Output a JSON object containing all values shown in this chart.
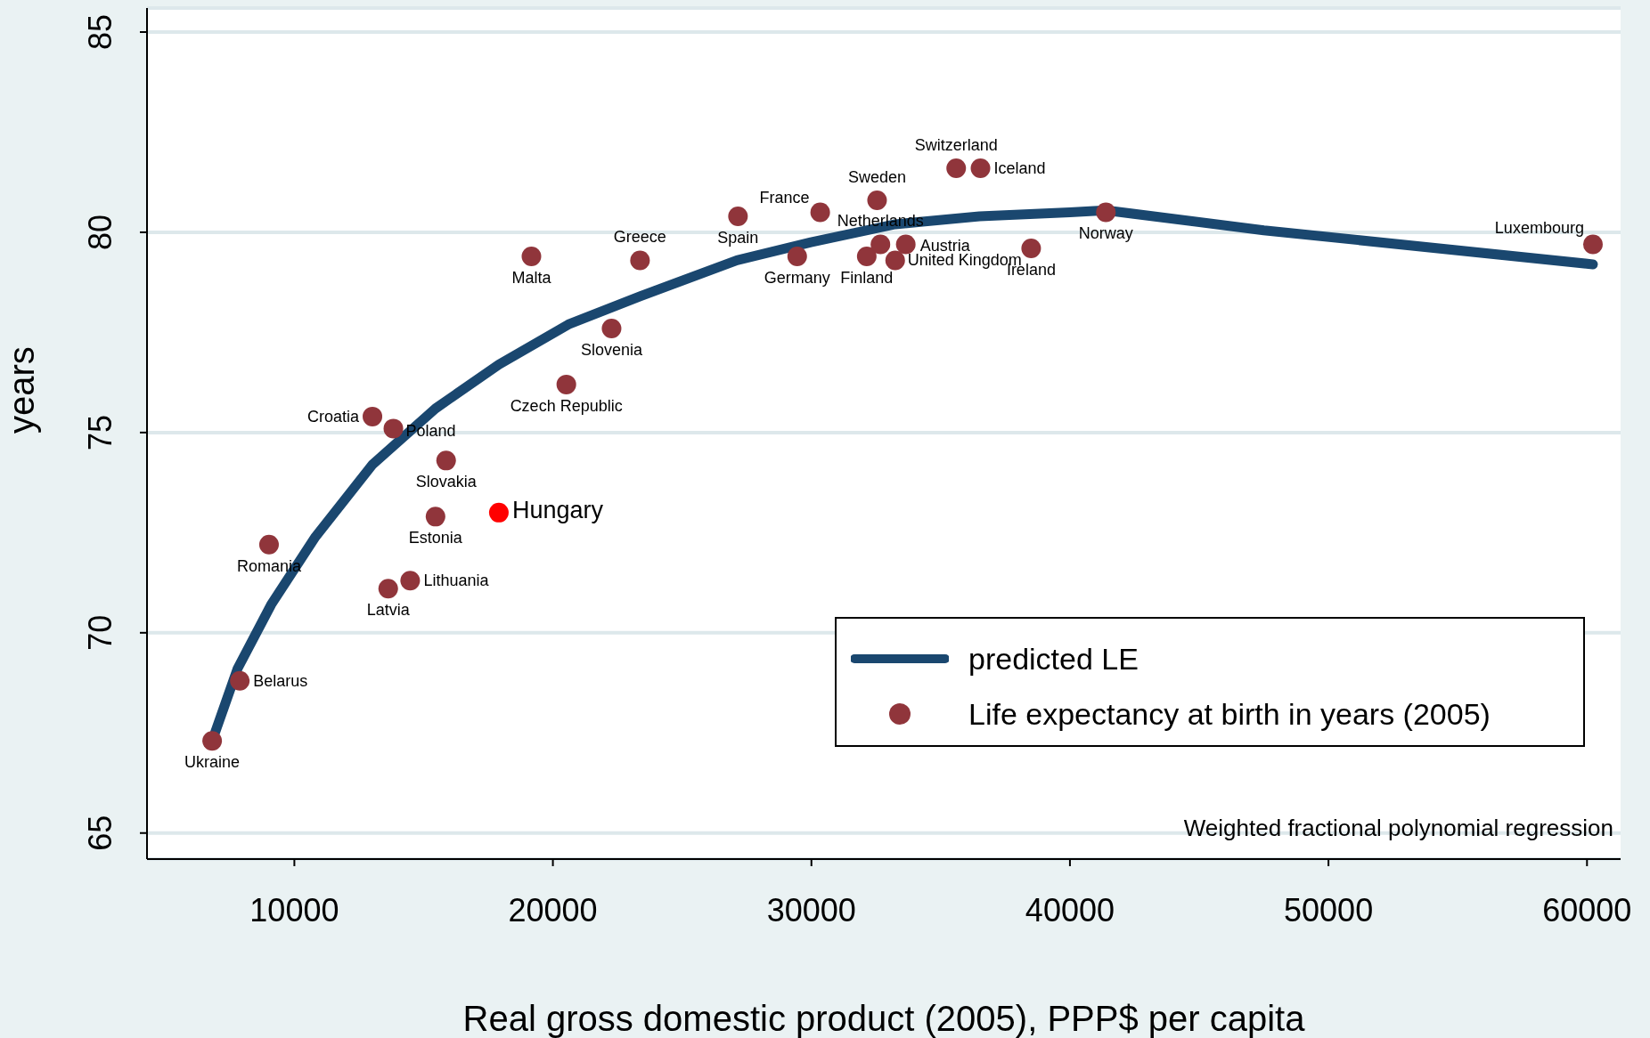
{
  "chart_data": {
    "type": "scatter",
    "xlabel": "Real gross domestic product (2005), PPP$ per capita",
    "ylabel": "years",
    "xlim": [
      4300,
      61300
    ],
    "ylim": [
      64.35,
      85.6
    ],
    "xticks": [
      10000,
      20000,
      30000,
      40000,
      50000,
      60000
    ],
    "yticks": [
      65,
      70,
      75,
      80,
      85
    ],
    "grid": "y",
    "legend": "bottom right",
    "annotations": [
      "Weighted fractional polynomial regression"
    ],
    "series": [
      {
        "type": "line",
        "name": "predicted LE",
        "color": "#1a476f",
        "x": [
          6820,
          7800,
          9100,
          10820,
          13020,
          15460,
          17910,
          20600,
          23370,
          27120,
          29980,
          33240,
          36500,
          40000,
          41390,
          47500,
          60230
        ],
        "values": [
          67.3,
          69.1,
          70.7,
          72.4,
          74.2,
          75.6,
          76.7,
          77.7,
          78.4,
          79.3,
          79.75,
          80.2,
          80.4,
          80.5,
          80.55,
          80.05,
          79.2
        ]
      },
      {
        "name": "Life expectancy at birth in years (2005)",
        "marker": "circle",
        "color": "#90353b",
        "x": [
          6820,
          7890,
          9020,
          13020,
          13830,
          15870,
          15460,
          14480,
          13630,
          19170,
          20520,
          22270,
          23370,
          27160,
          29450,
          30340,
          32540,
          32140,
          32670,
          33240,
          33650,
          35600,
          36540,
          38500,
          41390,
          60230
        ],
        "values": [
          67.3,
          68.8,
          72.2,
          75.4,
          75.1,
          74.3,
          72.9,
          71.3,
          71.1,
          79.4,
          76.2,
          77.6,
          79.3,
          80.4,
          79.4,
          80.5,
          80.8,
          79.4,
          79.7,
          79.3,
          79.7,
          81.6,
          81.6,
          79.6,
          80.5,
          79.7
        ],
        "value_labels": [
          "Ukraine",
          "Belarus",
          "Romania",
          "Croatia",
          "Poland",
          "Slovakia",
          "Estonia",
          "Lithuania",
          "Latvia",
          "Malta",
          "Czech Republic",
          "Slovenia",
          "Greece",
          "Spain",
          "Germany",
          "France",
          "Sweden",
          "Finland",
          "Netherlands",
          "United Kingdom",
          "Austria",
          "Switzerland",
          "Iceland",
          "Ireland",
          "Norway",
          "Luxembourg"
        ]
      },
      {
        "color": "#ff0000",
        "marker": "circle",
        "x": [
          17910
        ],
        "values": [
          73.0
        ],
        "value_labels": [
          "Hungary"
        ]
      }
    ]
  }
}
